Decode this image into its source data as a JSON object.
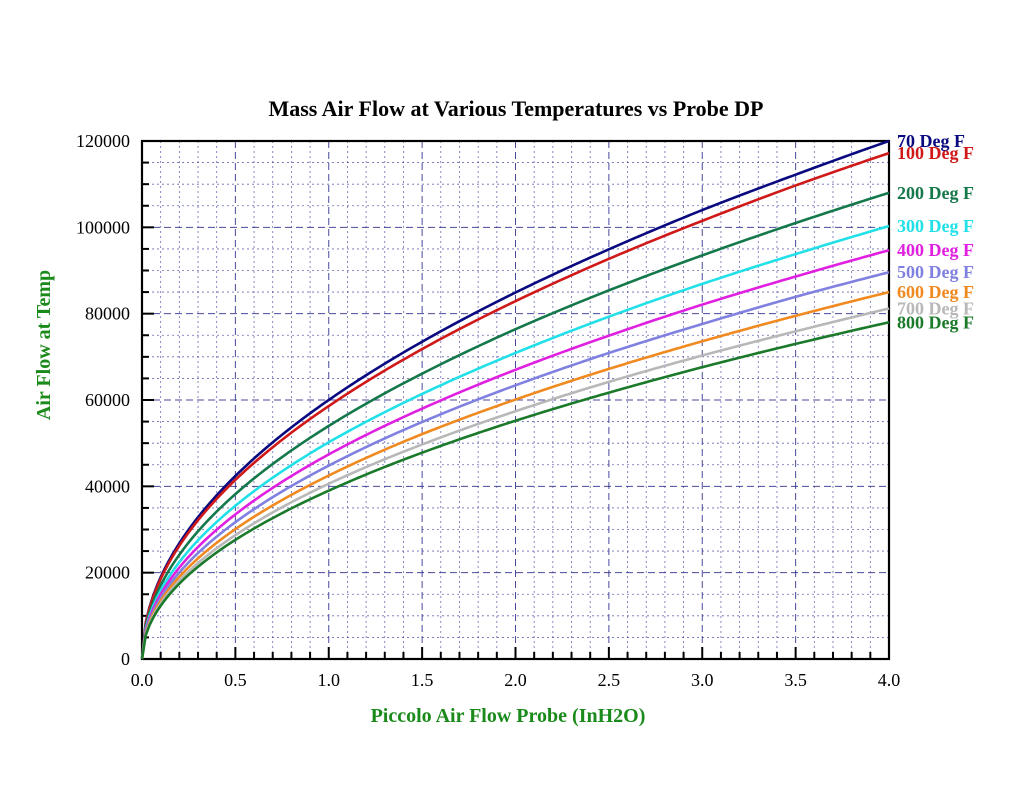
{
  "chart_data": {
    "type": "line",
    "title": "Mass Air Flow at Various Temperatures vs Probe DP",
    "xlabel": "Piccolo Air Flow Probe (InH2O)",
    "ylabel": "Air Flow at Temp",
    "xlim": [
      0,
      4.0
    ],
    "ylim": [
      0,
      120000
    ],
    "x_ticks": [
      "0.0",
      "0.5",
      "1.0",
      "1.5",
      "2.0",
      "2.5",
      "3.0",
      "3.5",
      "4.0"
    ],
    "y_ticks": [
      "0",
      "20000",
      "40000",
      "60000",
      "80000",
      "100000",
      "120000"
    ],
    "grid": true,
    "legend_placement": "right, at curve ends",
    "colors": {
      "title": "#000000",
      "axis_label": "#1a8a1a",
      "grid_major": "#2a2a8a",
      "grid_minor": "#3a3a9a",
      "axes": "#000000"
    },
    "x": [
      0.0,
      0.5,
      1.0,
      1.5,
      2.0,
      2.5,
      3.0,
      3.5,
      4.0
    ],
    "series": [
      {
        "name": "70 Deg F",
        "color": "#0a0a80",
        "values": [
          0,
          42400,
          60000,
          73500,
          84900,
          94900,
          104000,
          112200,
          120000
        ]
      },
      {
        "name": "100 Deg F",
        "color": "#d01818",
        "values": [
          0,
          41500,
          58600,
          71800,
          82900,
          92700,
          101500,
          109700,
          117200
        ]
      },
      {
        "name": "200 Deg F",
        "color": "#14784a",
        "values": [
          0,
          38200,
          54000,
          66100,
          76400,
          85400,
          93500,
          101000,
          108000
        ]
      },
      {
        "name": "300 Deg F",
        "color": "#22e0e8",
        "values": [
          0,
          35500,
          50200,
          61400,
          70900,
          79300,
          86900,
          93800,
          100300
        ]
      },
      {
        "name": "400 Deg F",
        "color": "#e020e0",
        "values": [
          0,
          33500,
          47400,
          58000,
          67000,
          74900,
          82100,
          88600,
          94700
        ]
      },
      {
        "name": "500 Deg F",
        "color": "#8080e0",
        "values": [
          0,
          31700,
          44800,
          54900,
          63400,
          70900,
          77600,
          83900,
          89600
        ]
      },
      {
        "name": "600 Deg F",
        "color": "#f08a20",
        "values": [
          0,
          30100,
          42500,
          52100,
          60100,
          67200,
          73600,
          79500,
          85000
        ]
      },
      {
        "name": "700 Deg F",
        "color": "#b8b8b8",
        "values": [
          0,
          28700,
          40600,
          49700,
          57400,
          64200,
          70300,
          75900,
          81200
        ]
      },
      {
        "name": "800 Deg F",
        "color": "#1a7a2a",
        "values": [
          0,
          27600,
          39000,
          47800,
          55200,
          61700,
          67600,
          73000,
          78000
        ]
      }
    ]
  }
}
